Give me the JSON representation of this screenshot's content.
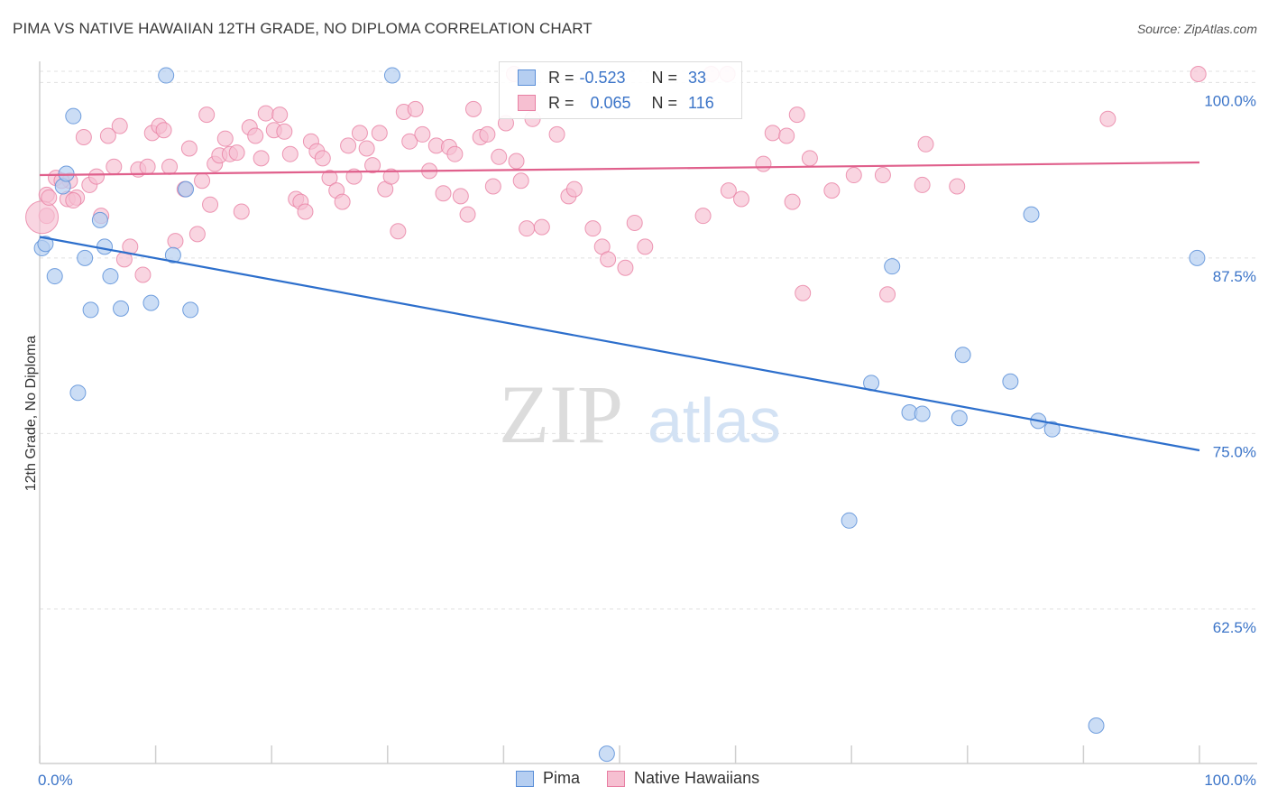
{
  "title": "PIMA VS NATIVE HAWAIIAN 12TH GRADE, NO DIPLOMA CORRELATION CHART",
  "source": "Source: ZipAtlas.com",
  "watermark": {
    "zip": "ZIP",
    "atlas": "atlas"
  },
  "legend": {
    "r_label": "R =",
    "n_label": "N =",
    "rows": [
      {
        "name": "Pima",
        "r": "-0.523",
        "n": "33"
      },
      {
        "name": "Native Hawaiians",
        "r": "0.065",
        "n": "116"
      }
    ]
  },
  "colors": {
    "pima_fill": "#b5cef1",
    "pima_stroke": "#5b8fd8",
    "pima_line": "#2d6fcc",
    "hawaii_fill": "#f6bfd1",
    "hawaii_stroke": "#e87fa3",
    "hawaii_line": "#e0608c",
    "tick_text": "#3b74c8",
    "grid": "#e0e0e0"
  },
  "chart_data": {
    "type": "scatter",
    "title": "PIMA VS NATIVE HAWAIIAN 12TH GRADE, NO DIPLOMA CORRELATION CHART",
    "xlabel": "",
    "ylabel": "12th Grade, No Diploma",
    "x_tick_labels": [
      "0.0%",
      "100.0%"
    ],
    "y_tick_labels": [
      "100.0%",
      "87.5%",
      "75.0%",
      "62.5%"
    ],
    "y_ticks": [
      100,
      87.5,
      75,
      62.5
    ],
    "xlim": [
      0,
      100
    ],
    "ylim": [
      51.5,
      101.5
    ],
    "grid": true,
    "legend_position": "top-center",
    "series": [
      {
        "name": "Pima",
        "trend": {
          "x": [
            0,
            100
          ],
          "y": [
            89.0,
            73.8
          ]
        },
        "points": [
          [
            0.2,
            88.2
          ],
          [
            0.5,
            88.5
          ],
          [
            1.3,
            86.2
          ],
          [
            2.0,
            92.6
          ],
          [
            2.3,
            93.5
          ],
          [
            2.9,
            97.6
          ],
          [
            3.3,
            77.9
          ],
          [
            3.9,
            87.5
          ],
          [
            4.4,
            83.8
          ],
          [
            5.2,
            90.2
          ],
          [
            5.6,
            88.3
          ],
          [
            6.1,
            86.2
          ],
          [
            7.0,
            83.9
          ],
          [
            9.6,
            84.3
          ],
          [
            10.9,
            100.5
          ],
          [
            11.5,
            87.7
          ],
          [
            12.6,
            92.4
          ],
          [
            13.0,
            83.8
          ],
          [
            30.4,
            100.5
          ],
          [
            48.9,
            52.2
          ],
          [
            69.8,
            68.8
          ],
          [
            71.7,
            78.6
          ],
          [
            73.5,
            86.9
          ],
          [
            75.0,
            76.5
          ],
          [
            76.1,
            76.4
          ],
          [
            79.3,
            76.1
          ],
          [
            79.6,
            80.6
          ],
          [
            83.7,
            78.7
          ],
          [
            85.5,
            90.6
          ],
          [
            86.1,
            75.9
          ],
          [
            87.3,
            75.3
          ],
          [
            91.1,
            54.2
          ],
          [
            99.8,
            87.5
          ]
        ]
      },
      {
        "name": "Native Hawaiians",
        "trend": {
          "x": [
            0,
            100
          ],
          "y": [
            93.4,
            94.3
          ]
        },
        "points": [
          [
            0.6,
            90.5
          ],
          [
            0.6,
            92.0
          ],
          [
            1.4,
            93.2
          ],
          [
            2.4,
            91.7
          ],
          [
            2.6,
            93.0
          ],
          [
            3.2,
            91.8
          ],
          [
            3.8,
            96.1
          ],
          [
            4.3,
            92.7
          ],
          [
            4.9,
            93.3
          ],
          [
            5.3,
            90.5
          ],
          [
            5.9,
            96.2
          ],
          [
            6.4,
            94.0
          ],
          [
            6.9,
            96.9
          ],
          [
            7.3,
            87.4
          ],
          [
            7.8,
            88.3
          ],
          [
            8.5,
            93.8
          ],
          [
            8.9,
            86.3
          ],
          [
            9.3,
            94.0
          ],
          [
            9.7,
            96.4
          ],
          [
            10.3,
            96.9
          ],
          [
            10.7,
            96.6
          ],
          [
            11.2,
            94.0
          ],
          [
            11.7,
            88.7
          ],
          [
            12.5,
            92.4
          ],
          [
            12.9,
            95.3
          ],
          [
            13.6,
            89.2
          ],
          [
            14.0,
            93.0
          ],
          [
            14.4,
            97.7
          ],
          [
            14.7,
            91.3
          ],
          [
            15.1,
            94.2
          ],
          [
            15.5,
            94.8
          ],
          [
            16.0,
            96.0
          ],
          [
            16.4,
            94.9
          ],
          [
            17.0,
            95.0
          ],
          [
            17.4,
            90.8
          ],
          [
            18.1,
            96.8
          ],
          [
            18.6,
            96.2
          ],
          [
            19.1,
            94.6
          ],
          [
            19.5,
            97.8
          ],
          [
            20.2,
            96.6
          ],
          [
            20.7,
            97.7
          ],
          [
            21.1,
            96.5
          ],
          [
            21.6,
            94.9
          ],
          [
            22.1,
            91.7
          ],
          [
            22.5,
            91.5
          ],
          [
            22.9,
            90.8
          ],
          [
            23.4,
            95.8
          ],
          [
            23.9,
            95.1
          ],
          [
            24.4,
            94.6
          ],
          [
            25.0,
            93.2
          ],
          [
            25.6,
            92.3
          ],
          [
            26.1,
            91.5
          ],
          [
            26.6,
            95.5
          ],
          [
            27.1,
            93.3
          ],
          [
            27.6,
            96.4
          ],
          [
            28.2,
            95.3
          ],
          [
            28.7,
            94.1
          ],
          [
            29.3,
            96.4
          ],
          [
            29.8,
            92.4
          ],
          [
            30.3,
            93.3
          ],
          [
            30.9,
            89.4
          ],
          [
            31.4,
            97.9
          ],
          [
            31.9,
            95.8
          ],
          [
            32.4,
            98.1
          ],
          [
            33.0,
            96.3
          ],
          [
            33.6,
            93.7
          ],
          [
            34.2,
            95.5
          ],
          [
            34.8,
            92.1
          ],
          [
            35.3,
            95.4
          ],
          [
            35.8,
            94.9
          ],
          [
            36.3,
            91.9
          ],
          [
            36.9,
            90.6
          ],
          [
            37.4,
            98.1
          ],
          [
            38.0,
            96.1
          ],
          [
            38.6,
            96.3
          ],
          [
            39.1,
            92.6
          ],
          [
            39.6,
            94.7
          ],
          [
            40.2,
            97.1
          ],
          [
            41.1,
            94.4
          ],
          [
            41.5,
            93.0
          ],
          [
            42.0,
            89.6
          ],
          [
            42.5,
            97.4
          ],
          [
            43.3,
            89.7
          ],
          [
            44.6,
            96.3
          ],
          [
            45.6,
            91.9
          ],
          [
            46.1,
            92.4
          ],
          [
            47.7,
            89.6
          ],
          [
            48.5,
            88.3
          ],
          [
            49.0,
            87.4
          ],
          [
            50.5,
            86.8
          ],
          [
            51.3,
            90.0
          ],
          [
            52.2,
            88.3
          ],
          [
            57.2,
            90.5
          ],
          [
            59.4,
            92.3
          ],
          [
            60.5,
            91.7
          ],
          [
            62.4,
            94.2
          ],
          [
            63.2,
            96.4
          ],
          [
            64.4,
            96.2
          ],
          [
            64.9,
            91.5
          ],
          [
            65.3,
            97.7
          ],
          [
            65.8,
            85.0
          ],
          [
            66.4,
            94.6
          ],
          [
            68.3,
            92.3
          ],
          [
            70.2,
            93.4
          ],
          [
            72.7,
            93.4
          ],
          [
            73.1,
            84.9
          ],
          [
            76.1,
            92.7
          ],
          [
            76.4,
            95.6
          ],
          [
            79.1,
            92.6
          ],
          [
            99.9,
            100.6
          ],
          [
            92.1,
            97.4
          ],
          [
            57.9,
            100.6
          ],
          [
            59.3,
            100.6
          ],
          [
            40.9,
            100.6
          ],
          [
            0.2,
            90.4
          ],
          [
            0.8,
            91.8
          ],
          [
            2.9,
            91.6
          ],
          [
            1.9,
            93.0
          ]
        ]
      }
    ]
  }
}
